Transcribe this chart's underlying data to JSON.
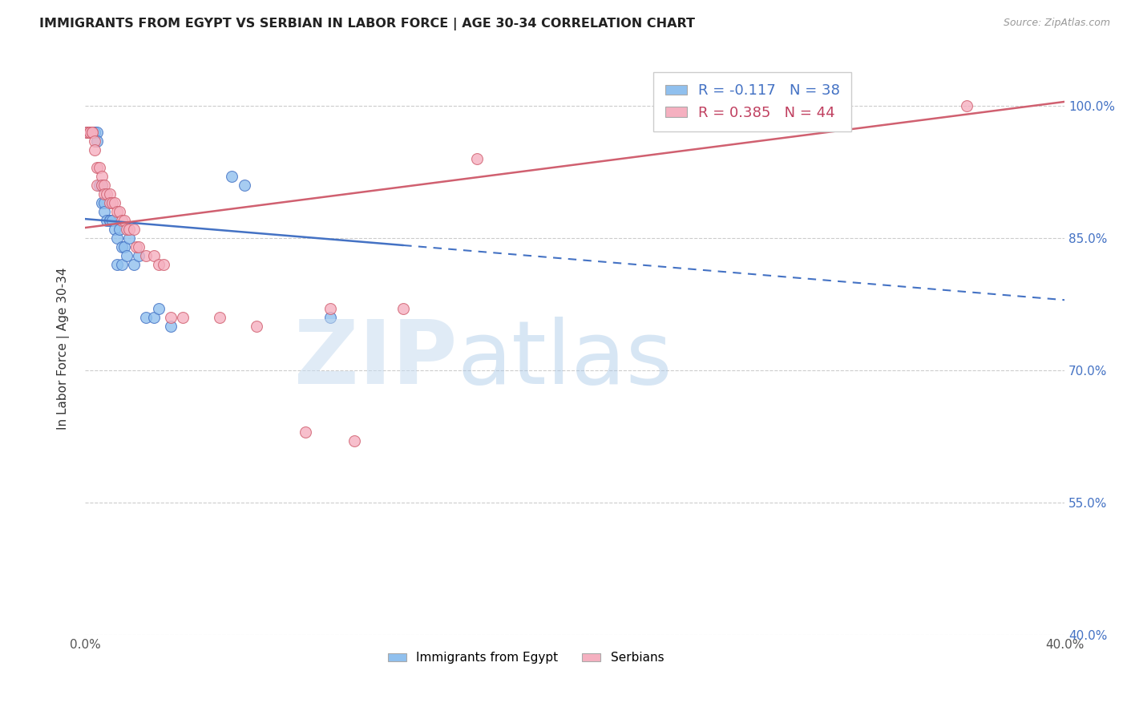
{
  "title": "IMMIGRANTS FROM EGYPT VS SERBIAN IN LABOR FORCE | AGE 30-34 CORRELATION CHART",
  "source": "Source: ZipAtlas.com",
  "ylabel": "In Labor Force | Age 30-34",
  "xlim": [
    0.0,
    0.4
  ],
  "ylim": [
    0.4,
    1.05
  ],
  "xtick_positions": [
    0.0,
    0.05,
    0.1,
    0.15,
    0.2,
    0.25,
    0.3,
    0.35,
    0.4
  ],
  "xticklabels": [
    "0.0%",
    "",
    "",
    "",
    "",
    "",
    "",
    "",
    "40.0%"
  ],
  "ytick_positions": [
    0.4,
    0.55,
    0.7,
    0.85,
    1.0
  ],
  "yticklabels_right": [
    "40.0%",
    "55.0%",
    "70.0%",
    "85.0%",
    "100.0%"
  ],
  "grid_color": "#cccccc",
  "background_color": "#ffffff",
  "legend_R_egypt": "-0.117",
  "legend_N_egypt": "38",
  "legend_R_serbian": "0.385",
  "legend_N_serbian": "44",
  "color_egypt": "#90C0EE",
  "color_serbian": "#F5B0C0",
  "trendline_color_egypt": "#4472C4",
  "trendline_color_serbian": "#D06070",
  "trendline_egypt_x0": 0.0,
  "trendline_egypt_y0": 0.872,
  "trendline_egypt_x1": 0.4,
  "trendline_egypt_y1": 0.78,
  "trendline_egypt_solid_end": 0.13,
  "trendline_serbian_x0": 0.0,
  "trendline_serbian_y0": 0.862,
  "trendline_serbian_x1": 0.4,
  "trendline_serbian_y1": 1.005,
  "egypt_x": [
    0.001,
    0.001,
    0.002,
    0.002,
    0.003,
    0.003,
    0.003,
    0.004,
    0.004,
    0.005,
    0.005,
    0.006,
    0.007,
    0.007,
    0.008,
    0.008,
    0.009,
    0.01,
    0.01,
    0.011,
    0.012,
    0.013,
    0.013,
    0.014,
    0.015,
    0.015,
    0.016,
    0.017,
    0.018,
    0.02,
    0.022,
    0.025,
    0.028,
    0.03,
    0.035,
    0.06,
    0.065,
    0.1
  ],
  "egypt_y": [
    0.97,
    0.97,
    0.97,
    0.97,
    0.97,
    0.97,
    0.97,
    0.97,
    0.97,
    0.97,
    0.96,
    0.91,
    0.91,
    0.89,
    0.89,
    0.88,
    0.87,
    0.87,
    0.87,
    0.87,
    0.86,
    0.85,
    0.82,
    0.86,
    0.84,
    0.82,
    0.84,
    0.83,
    0.85,
    0.82,
    0.83,
    0.76,
    0.76,
    0.77,
    0.75,
    0.92,
    0.91,
    0.76
  ],
  "serbian_x": [
    0.001,
    0.001,
    0.001,
    0.002,
    0.002,
    0.003,
    0.003,
    0.004,
    0.004,
    0.005,
    0.005,
    0.006,
    0.007,
    0.007,
    0.008,
    0.008,
    0.009,
    0.01,
    0.01,
    0.011,
    0.012,
    0.013,
    0.014,
    0.015,
    0.016,
    0.017,
    0.018,
    0.02,
    0.021,
    0.022,
    0.025,
    0.028,
    0.03,
    0.032,
    0.035,
    0.04,
    0.055,
    0.07,
    0.09,
    0.1,
    0.11,
    0.13,
    0.16,
    0.36
  ],
  "serbian_y": [
    0.97,
    0.97,
    0.97,
    0.97,
    0.97,
    0.97,
    0.97,
    0.96,
    0.95,
    0.93,
    0.91,
    0.93,
    0.92,
    0.91,
    0.91,
    0.9,
    0.9,
    0.9,
    0.89,
    0.89,
    0.89,
    0.88,
    0.88,
    0.87,
    0.87,
    0.86,
    0.86,
    0.86,
    0.84,
    0.84,
    0.83,
    0.83,
    0.82,
    0.82,
    0.76,
    0.76,
    0.76,
    0.75,
    0.63,
    0.77,
    0.62,
    0.77,
    0.94,
    1.0
  ]
}
